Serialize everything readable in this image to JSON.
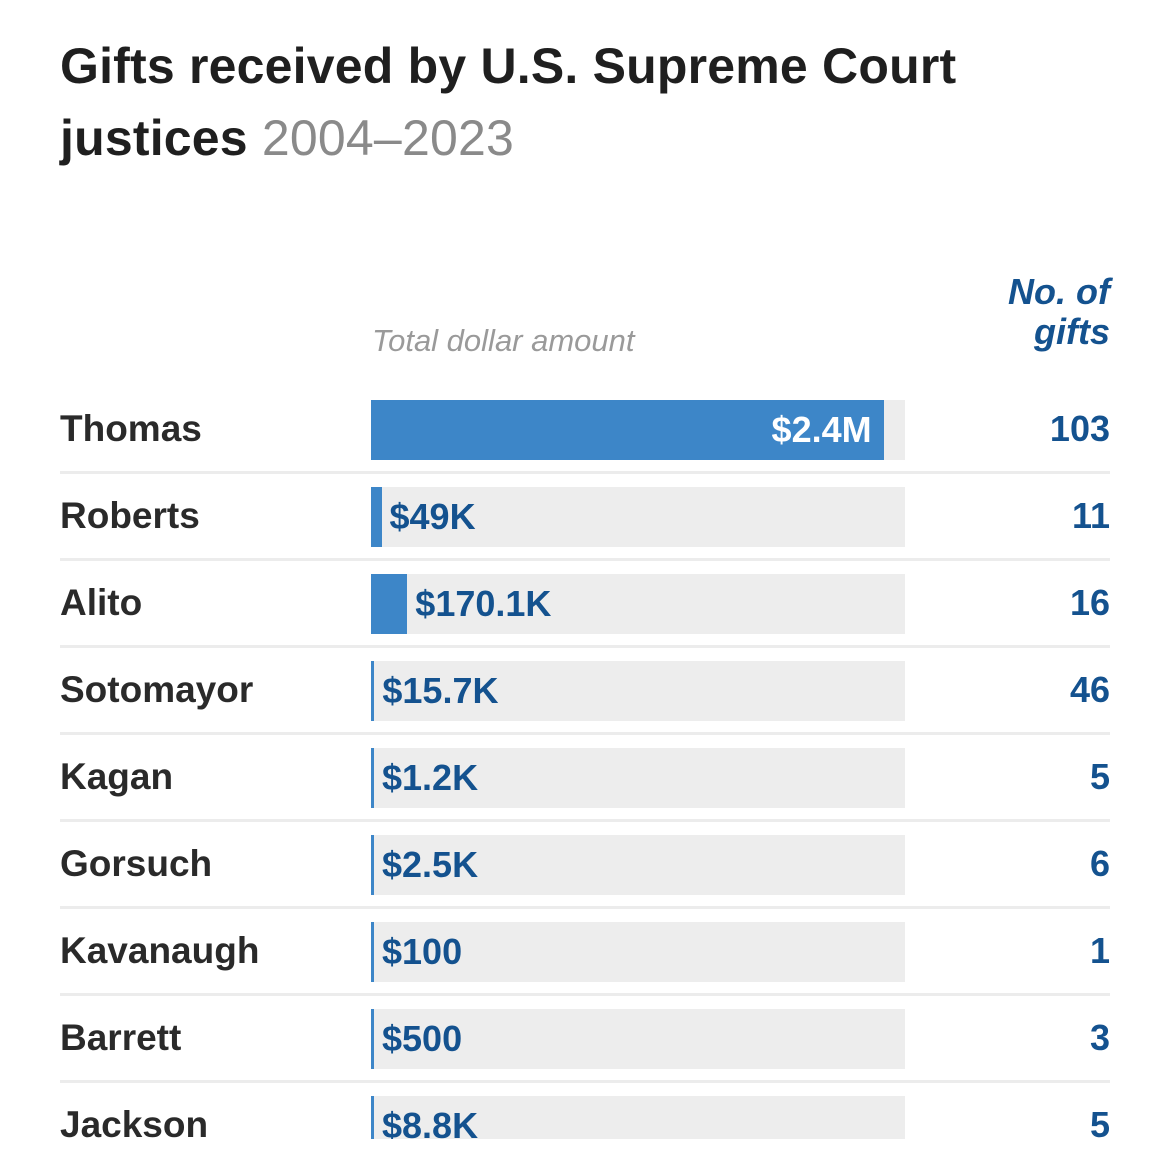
{
  "title": "Gifts received by U.S. Supreme Court justices",
  "subtitle": "2004–2023",
  "columns": {
    "amount_header": "Total dollar amount",
    "count_header_line1": "No. of",
    "count_header_line2": "gifts"
  },
  "colors": {
    "bar": "#3d86c8",
    "track": "#ededed",
    "value_text": "#14528f",
    "title": "#1f1f1f",
    "subtitle": "#8a8a8a"
  },
  "chart_data": {
    "type": "bar",
    "orientation": "horizontal",
    "title": "Gifts received by U.S. Supreme Court justices",
    "subtitle": "2004–2023",
    "xlabel": "Total dollar amount",
    "categories": [
      "Thomas",
      "Roberts",
      "Alito",
      "Sotomayor",
      "Kagan",
      "Gorsuch",
      "Kavanaugh",
      "Barrett",
      "Jackson"
    ],
    "values": [
      2400000,
      49000,
      170100,
      15700,
      1200,
      2500,
      100,
      500,
      8800
    ],
    "value_labels": [
      "$2.4M",
      "$49K",
      "$170.1K",
      "$15.7K",
      "$1.2K",
      "$2.5K",
      "$100",
      "$500",
      "$8.8K"
    ],
    "gift_counts": [
      103,
      11,
      16,
      46,
      5,
      6,
      1,
      3,
      5
    ],
    "count_labels": [
      "103",
      "11",
      "16",
      "46",
      "5",
      "6",
      "1",
      "3",
      "5"
    ],
    "xlim": [
      0,
      2500000
    ],
    "grid": false,
    "legend": "none"
  }
}
